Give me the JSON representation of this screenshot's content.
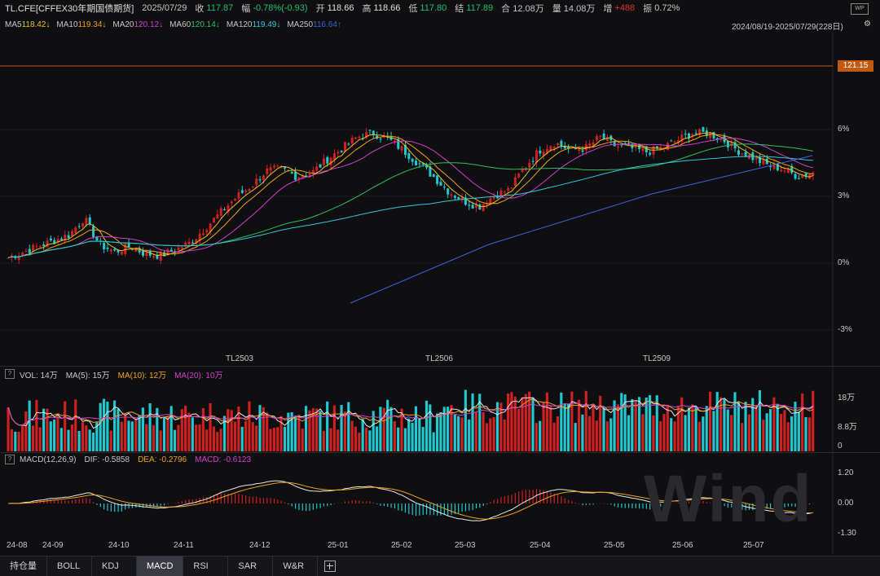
{
  "header": {
    "symbol": "TL.CFE[CFFEX30年期国债期货]",
    "date": "2025/07/29",
    "close_label": "收",
    "close": "117.87",
    "chg_label": "幅",
    "chg": "-0.78%(-0.93)",
    "open_label": "开",
    "open": "118.66",
    "high_label": "高",
    "high": "118.66",
    "low_label": "低",
    "low": "117.80",
    "settle_label": "结",
    "settle": "117.89",
    "oi_label": "合",
    "oi": "12.08万",
    "vol_label": "量",
    "vol": "14.08万",
    "inc_label": "增",
    "inc": "+488",
    "amp_label": "振",
    "amp": "0.72%",
    "range": "2024/08/19-2025/07/29(228日)"
  },
  "ma": [
    {
      "label": "MA5",
      "value": "118.42↓",
      "color": "#e6c229"
    },
    {
      "label": "MA10",
      "value": "119.34↓",
      "color": "#f0a020"
    },
    {
      "label": "MA20",
      "value": "120.12↓",
      "color": "#d040d0"
    },
    {
      "label": "MA60",
      "value": "120.14↓",
      "color": "#2fbf5f"
    },
    {
      "label": "MA120",
      "value": "119.49↓",
      "color": "#30c8d8"
    },
    {
      "label": "MA250",
      "value": "116.64↑",
      "color": "#4060e0"
    }
  ],
  "price_axis": {
    "marker": "121.15",
    "ticks": [
      "6%",
      "3%",
      "0%",
      "-3%"
    ]
  },
  "contracts": [
    "TL2503",
    "TL2506",
    "TL2509"
  ],
  "volume": {
    "prefix": "VOL: 14万",
    "ma5": "MA(5): 15万",
    "ma10": "MA(10): 12万",
    "ma20": "MA(20): 10万",
    "ticks": [
      "18万",
      "8.8万",
      "0"
    ]
  },
  "macd": {
    "prefix": "MACD(12,26,9)",
    "dif": "DIF: -0.5858",
    "dea": "DEA: -0.2796",
    "macd": "MACD: -0.6123",
    "ticks": [
      "1.20",
      "0.00",
      "-1.30"
    ]
  },
  "x_axis": [
    "24-08",
    "24-09",
    "24-10",
    "24-11",
    "24-12",
    "25-01",
    "25-02",
    "25-03",
    "25-04",
    "25-05",
    "25-06",
    "25-07"
  ],
  "tabs": [
    "持仓量",
    "BOLL",
    "KDJ",
    "MACD",
    "RSI",
    "SAR",
    "W&R"
  ],
  "active_tab": "MACD",
  "watermark": "Wind",
  "colors": {
    "up": "#d02020",
    "down": "#20c8d0",
    "bg": "#0f0f12"
  },
  "chart_data": {
    "type": "candlestick",
    "title": "TL.CFE[CFFEX30年期国债期货]",
    "x_range": [
      "2024-08-19",
      "2025-07-29"
    ],
    "close_path": [
      118.3,
      118.6,
      118.9,
      119.2,
      119.5,
      120.4,
      119.0,
      118.6,
      118.9,
      118.5,
      118.4,
      118.7,
      119.1,
      119.9,
      120.7,
      121.5,
      122.1,
      122.9,
      123.0,
      122.6,
      122.8,
      123.5,
      124.1,
      124.7,
      124.9,
      124.6,
      124.0,
      123.3,
      122.6,
      121.8,
      121.3,
      121.0,
      121.6,
      121.9,
      123.1,
      124.0,
      124.4,
      124.0,
      124.1,
      124.7,
      124.2,
      124.1,
      123.9,
      124.1,
      124.5,
      124.9,
      124.9,
      124.6,
      124.0,
      123.6,
      123.2,
      123.0,
      122.6,
      122.8
    ]
  }
}
